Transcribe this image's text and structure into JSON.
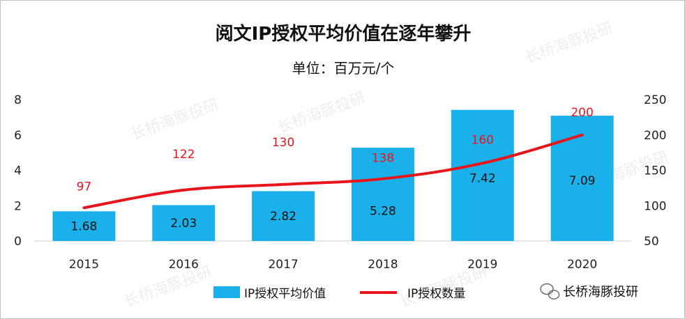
{
  "chart_data": {
    "type": "bar+line",
    "title": "阅文IP授权平均价值在逐年攀升",
    "subtitle": "单位：百万元/个",
    "categories": [
      "2015",
      "2016",
      "2017",
      "2018",
      "2019",
      "2020"
    ],
    "series": [
      {
        "name": "IP授权平均价值",
        "type": "bar",
        "axis": "left",
        "color": "#1ab0ea",
        "values": [
          1.68,
          2.03,
          2.82,
          5.28,
          7.42,
          7.09
        ],
        "labels": [
          "1.68",
          "2.03",
          "2.82",
          "5.28",
          "7.42",
          "7.09"
        ]
      },
      {
        "name": "IP授权数量",
        "type": "line",
        "axis": "right",
        "color": "#e8141c",
        "values": [
          97,
          122,
          130,
          138,
          160,
          200
        ],
        "labels": [
          "97",
          "122",
          "130",
          "138",
          "160",
          "200"
        ]
      }
    ],
    "y_left": {
      "min": 0,
      "max": 8,
      "ticks": [
        "0",
        "2",
        "4",
        "6",
        "8"
      ]
    },
    "y_right": {
      "min": 50,
      "max": 250,
      "ticks": [
        "50",
        "100",
        "150",
        "200",
        "250"
      ]
    },
    "legend_position": "bottom-center"
  },
  "watermark": {
    "brand": "长桥海豚投研",
    "icon": "wechat-icon"
  }
}
